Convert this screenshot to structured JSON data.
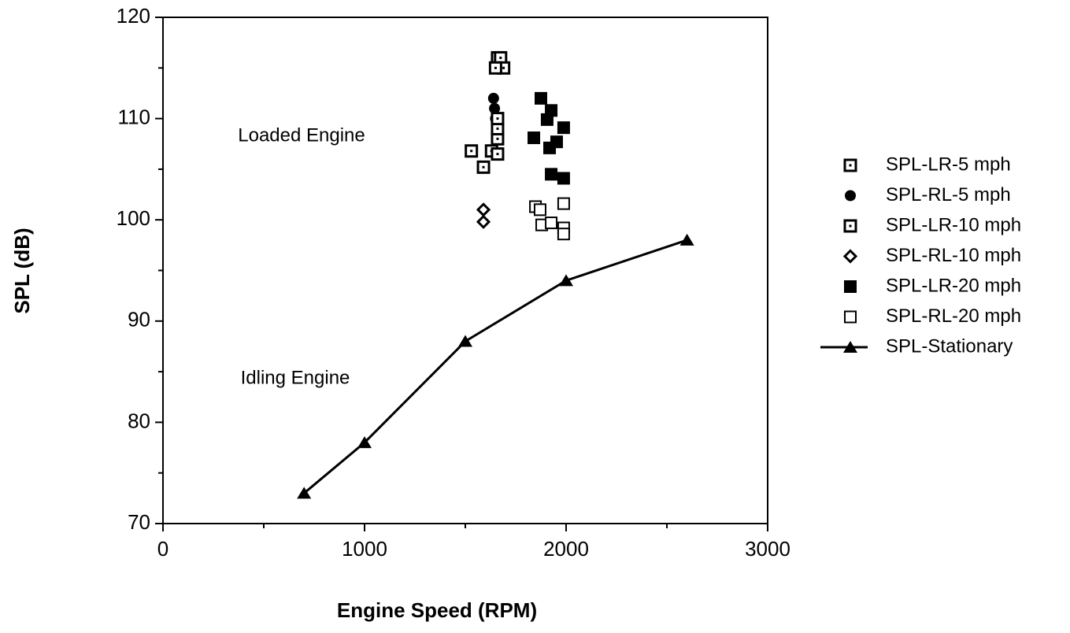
{
  "chart_data": {
    "type": "scatter",
    "xlabel": "Engine  Speed  (RPM)",
    "ylabel": "SPL  (dB)",
    "annotations": [
      "Loaded Engine",
      "Idling Engine"
    ],
    "xlim": [
      0,
      3000
    ],
    "xticks": [
      0,
      1000,
      2000,
      3000
    ],
    "xticks_minor": [
      500,
      1500,
      2500
    ],
    "ylim": [
      70,
      120
    ],
    "yticks": [
      70,
      80,
      90,
      100,
      110,
      120
    ],
    "yticks_minor": [
      75,
      85,
      95,
      105,
      115
    ],
    "legend": "right",
    "series": [
      {
        "name": "SPL-LR-5 mph",
        "color": "#000000",
        "marker": "square-dot",
        "line": false,
        "x": [
          1660,
          1675,
          1690,
          1650
        ],
        "values": [
          116,
          116,
          115,
          115
        ]
      },
      {
        "name": "SPL-RL-5 mph",
        "color": "#000000",
        "marker": "circle",
        "line": false,
        "x": [
          1640,
          1645,
          1650,
          1660
        ],
        "values": [
          112,
          111,
          110,
          109.5
        ]
      },
      {
        "name": "SPL-LR-10 mph",
        "color": "#000000",
        "marker": "square-dot",
        "line": false,
        "x": [
          1530,
          1590,
          1630,
          1660,
          1660,
          1660,
          1660
        ],
        "values": [
          106.8,
          105.2,
          106.8,
          106.5,
          108,
          109,
          110
        ]
      },
      {
        "name": "SPL-RL-10 mph",
        "color": "#000000",
        "marker": "diamond-open",
        "line": false,
        "x": [
          1590,
          1590
        ],
        "values": [
          101,
          99.8
        ]
      },
      {
        "name": "SPL-LR-20 mph",
        "color": "#000000",
        "marker": "square",
        "line": false,
        "x": [
          1875,
          1926,
          1906,
          1988,
          1840,
          1953,
          1918,
          1926,
          1988
        ],
        "values": [
          112,
          110.8,
          109.9,
          109.1,
          108.1,
          107.7,
          107.1,
          104.5,
          104.1
        ]
      },
      {
        "name": "SPL-RL-20 mph",
        "color": "#000000",
        "marker": "square-open",
        "line": false,
        "x": [
          1848,
          1871,
          1988,
          1879,
          1926,
          1988,
          1988
        ],
        "values": [
          101.3,
          101,
          101.6,
          99.5,
          99.7,
          99.2,
          98.6
        ]
      },
      {
        "name": "SPL-Stationary",
        "color": "#000000",
        "marker": "triangle",
        "line": true,
        "x": [
          700,
          1000,
          1500,
          2000,
          2600
        ],
        "values": [
          73,
          78,
          88,
          94,
          98
        ]
      }
    ]
  }
}
